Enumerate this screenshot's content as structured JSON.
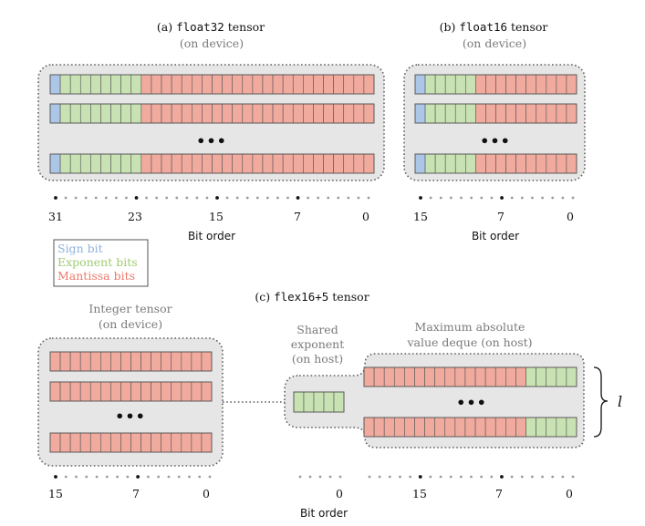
{
  "colors": {
    "sign": "#abc6e6",
    "exponent": "#c9e2b3",
    "mantissa": "#f1aa9e",
    "panel_bg": "#e6e6e6",
    "panel_border": "#606060",
    "cell_stroke": "#555555",
    "muted_text": "#7a7a7a",
    "text": "#111111",
    "dot_minor": "#9a9a9a",
    "dot_major": "#111111",
    "legend_sign": "#8fb3dc",
    "legend_exponent": "#9ecc72",
    "legend_mantissa": "#ee7a6c"
  },
  "panel_a": {
    "caption_prefix": "(a)",
    "caption_mono": "float32",
    "caption_suffix": "tensor",
    "subcaption": "(on device)",
    "bits": 32,
    "sign_bits": 1,
    "exponent_bits": 8,
    "ellipsis": "•••",
    "tick_labels": [
      "31",
      "23",
      "15",
      "7",
      "0"
    ],
    "axis_label": "Bit order"
  },
  "panel_b": {
    "caption_prefix": "(b)",
    "caption_mono": "float16",
    "caption_suffix": "tensor",
    "subcaption": "(on device)",
    "bits": 16,
    "sign_bits": 1,
    "exponent_bits": 5,
    "ellipsis": "•••",
    "tick_labels": [
      "15",
      "7",
      "0"
    ],
    "axis_label": "Bit order"
  },
  "legend": {
    "sign": "Sign bit",
    "exponent": "Exponent bits",
    "mantissa": "Mantissa bits"
  },
  "panel_c": {
    "caption_prefix": "(c)",
    "caption_mono": "flex16+5",
    "caption_suffix": "tensor",
    "integer": {
      "label_line1": "Integer tensor",
      "label_line2": "(on device)",
      "bits": 16,
      "ellipsis": "•••",
      "tick_labels": [
        "15",
        "7",
        "0"
      ]
    },
    "shared": {
      "label_line1": "Shared",
      "label_line2": "exponent",
      "label_line3": "(on host)",
      "bits": 5,
      "tick_label": "0"
    },
    "deque": {
      "label_line1": "Maximum absolute",
      "label_line2": "value deque (on host)",
      "mantissa_bits": 16,
      "exponent_bits": 5,
      "ellipsis": "•••",
      "tick_labels": [
        "15",
        "7",
        "0"
      ],
      "brace_label": "l"
    },
    "axis_label": "Bit order"
  }
}
